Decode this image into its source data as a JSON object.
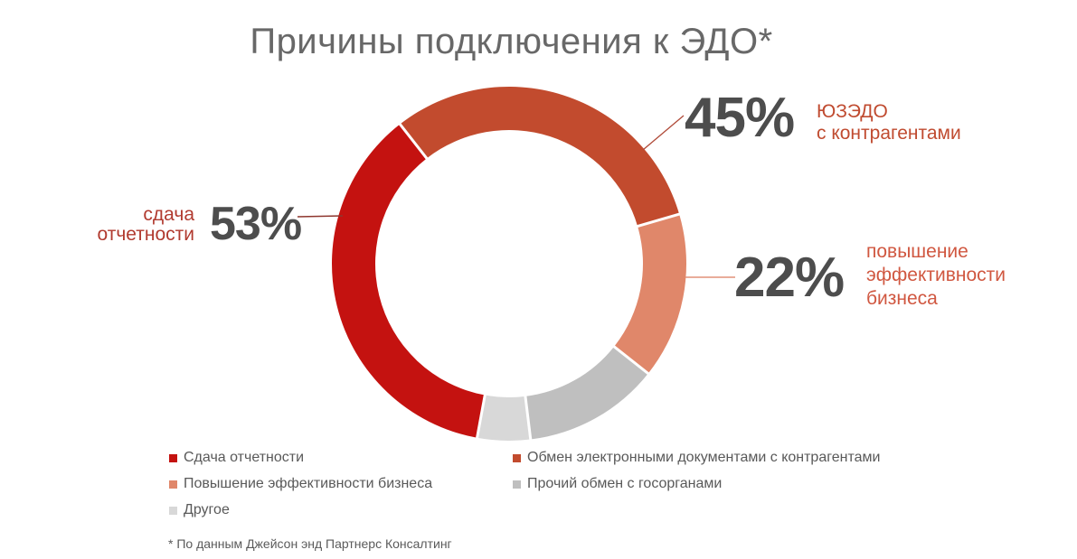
{
  "title": "Причины подключения к ЭДО*",
  "footnote": "* По данным Джейсон энд Партнерс Консалтинг",
  "palette": {
    "reporting_red": "#C41210",
    "contractors_brick": "#C24B2E",
    "efficiency_salmon": "#E0876A",
    "gov_gray": "#BFBFBF",
    "other_light_gray": "#D8D8D8",
    "big_number_gray": "#4D4D4D",
    "title_gray": "#686868",
    "legend_text_gray": "#595959"
  },
  "chart_data": {
    "type": "pie",
    "donut": true,
    "donut_hole_ratio": 0.755,
    "start_angle_deg": -38,
    "title": "Причины подключения к ЭДО*",
    "unit": "% (multi-select survey, sum exceeds 100%)",
    "legend_position": "bottom, two columns",
    "segments": [
      {
        "label": "Обмен электронными документами с контрагентами (ЮЗЭДО с контрагентами)",
        "value": 45,
        "color": "#C24B2E",
        "estimated": false
      },
      {
        "label": "Повышение эффективности бизнеса",
        "value": 22,
        "color": "#E0876A",
        "estimated": false
      },
      {
        "label": "Прочий обмен с госорганами",
        "value": 18,
        "color": "#BFBFBF",
        "estimated": true
      },
      {
        "label": "Другое",
        "value": 7,
        "color": "#D8D8D8",
        "estimated": true
      },
      {
        "label": "Сдача отчетности",
        "value": 53,
        "color": "#C41210",
        "estimated": false
      }
    ]
  },
  "callouts": {
    "contractors": {
      "pct": "45%",
      "lines": [
        "ЮЗЭДО",
        "с контрагентами"
      ]
    },
    "efficiency": {
      "pct": "22%",
      "lines": [
        "повышение",
        "эффективности",
        "бизнеса"
      ]
    },
    "reporting": {
      "pct": "53%",
      "lines": [
        "сдача",
        "отчетности"
      ]
    }
  },
  "legend": {
    "left": [
      {
        "label": "Сдача отчетности",
        "color": "#C41210"
      },
      {
        "label": "Повышение эффективности бизнеса",
        "color": "#E0876A"
      },
      {
        "label": "Другое",
        "color": "#D8D8D8"
      }
    ],
    "right": [
      {
        "label": "Обмен электронными документами с контрагентами",
        "color": "#C24B2E"
      },
      {
        "label": "Прочий обмен с госорганами",
        "color": "#BFBFBF"
      }
    ]
  }
}
